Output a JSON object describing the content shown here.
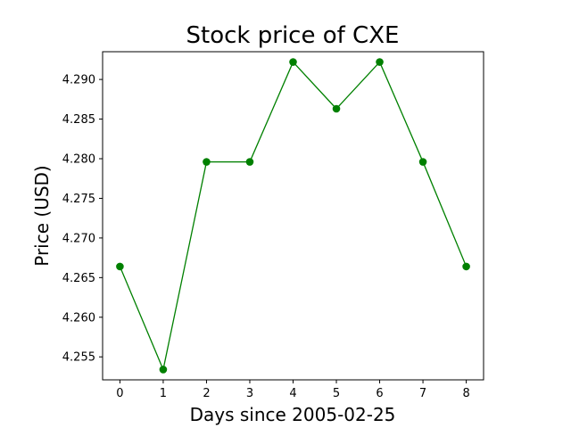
{
  "chart_data": {
    "type": "line",
    "title": "Stock price of CXE",
    "xlabel": "Days since 2005-02-25",
    "ylabel": "Price (USD)",
    "x": [
      0,
      1,
      2,
      3,
      4,
      5,
      6,
      7,
      8
    ],
    "series": [
      {
        "values": [
          4.2664,
          4.2534,
          4.2796,
          4.2796,
          4.2922,
          4.2863,
          4.2922,
          4.2796,
          4.2664
        ],
        "color": "#008000"
      }
    ],
    "xlim": [
      -0.4,
      8.4
    ],
    "ylim": [
      4.2521,
      4.2935
    ],
    "xticks": [
      "0",
      "1",
      "2",
      "3",
      "4",
      "5",
      "6",
      "7",
      "8"
    ],
    "yticks": [
      "4.255",
      "4.260",
      "4.265",
      "4.270",
      "4.275",
      "4.280",
      "4.285",
      "4.290"
    ],
    "grid": false,
    "marker": "circle"
  }
}
